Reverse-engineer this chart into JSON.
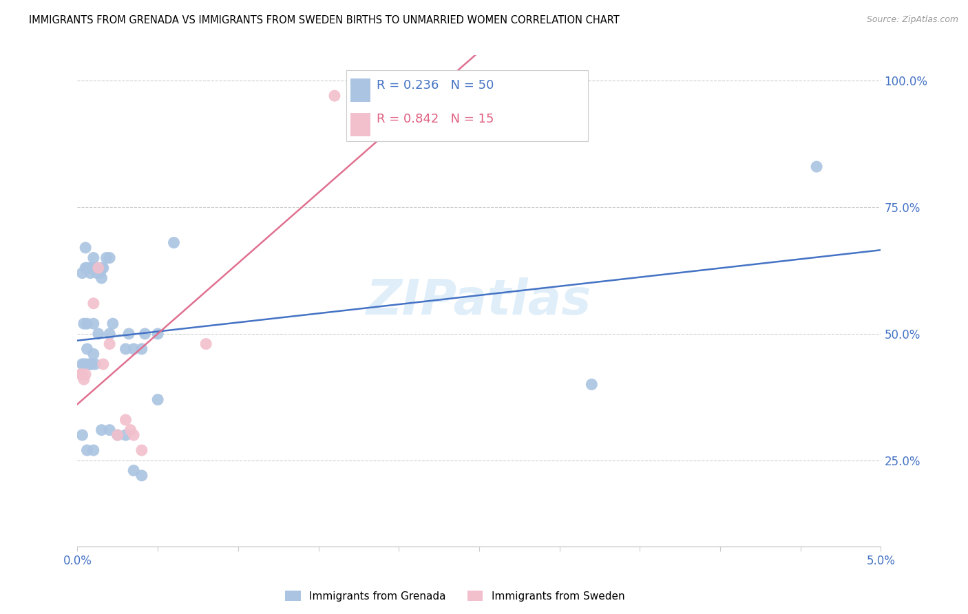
{
  "title": "IMMIGRANTS FROM GRENADA VS IMMIGRANTS FROM SWEDEN BIRTHS TO UNMARRIED WOMEN CORRELATION CHART",
  "source": "Source: ZipAtlas.com",
  "watermark": "ZIPatlas",
  "grenada_R": 0.236,
  "grenada_N": 50,
  "sweden_R": 0.842,
  "sweden_N": 15,
  "grenada_color": "#aac4e2",
  "sweden_color": "#f2bfcc",
  "grenada_line_color": "#4472c4",
  "sweden_line_color": "#e07090",
  "legend_label_grenada": "Immigrants from Grenada",
  "legend_label_sweden": "Immigrants from Sweden",
  "xmin": 0.0,
  "xmax": 0.05,
  "ymin": 0.08,
  "ymax": 1.05,
  "grenada_x": [
    0.0003,
    0.0004,
    0.0005,
    0.0006,
    0.0007,
    0.0008,
    0.0009,
    0.001,
    0.0011,
    0.0003,
    0.0005,
    0.0006,
    0.0008,
    0.001,
    0.0012,
    0.0014,
    0.0015,
    0.0004,
    0.0006,
    0.001,
    0.0013,
    0.0016,
    0.002,
    0.0022,
    0.0005,
    0.0008,
    0.001,
    0.0012,
    0.0015,
    0.0018,
    0.002,
    0.003,
    0.0032,
    0.0035,
    0.004,
    0.0042,
    0.005,
    0.006,
    0.0003,
    0.0006,
    0.001,
    0.0015,
    0.002,
    0.0025,
    0.003,
    0.0035,
    0.004,
    0.005,
    0.032,
    0.046
  ],
  "grenada_y": [
    0.44,
    0.44,
    0.44,
    0.47,
    0.44,
    0.44,
    0.44,
    0.46,
    0.44,
    0.62,
    0.63,
    0.63,
    0.62,
    0.65,
    0.62,
    0.62,
    0.61,
    0.52,
    0.52,
    0.52,
    0.5,
    0.63,
    0.5,
    0.52,
    0.67,
    0.63,
    0.63,
    0.63,
    0.63,
    0.65,
    0.65,
    0.47,
    0.5,
    0.47,
    0.47,
    0.5,
    0.5,
    0.68,
    0.3,
    0.27,
    0.27,
    0.31,
    0.31,
    0.3,
    0.3,
    0.23,
    0.22,
    0.37,
    0.4,
    0.83
  ],
  "sweden_x": [
    0.0002,
    0.0003,
    0.0004,
    0.0005,
    0.001,
    0.0013,
    0.0016,
    0.002,
    0.0025,
    0.003,
    0.0033,
    0.0035,
    0.004,
    0.008,
    0.016
  ],
  "sweden_y": [
    0.42,
    0.42,
    0.41,
    0.42,
    0.56,
    0.63,
    0.44,
    0.48,
    0.3,
    0.33,
    0.31,
    0.3,
    0.27,
    0.48,
    0.97
  ]
}
